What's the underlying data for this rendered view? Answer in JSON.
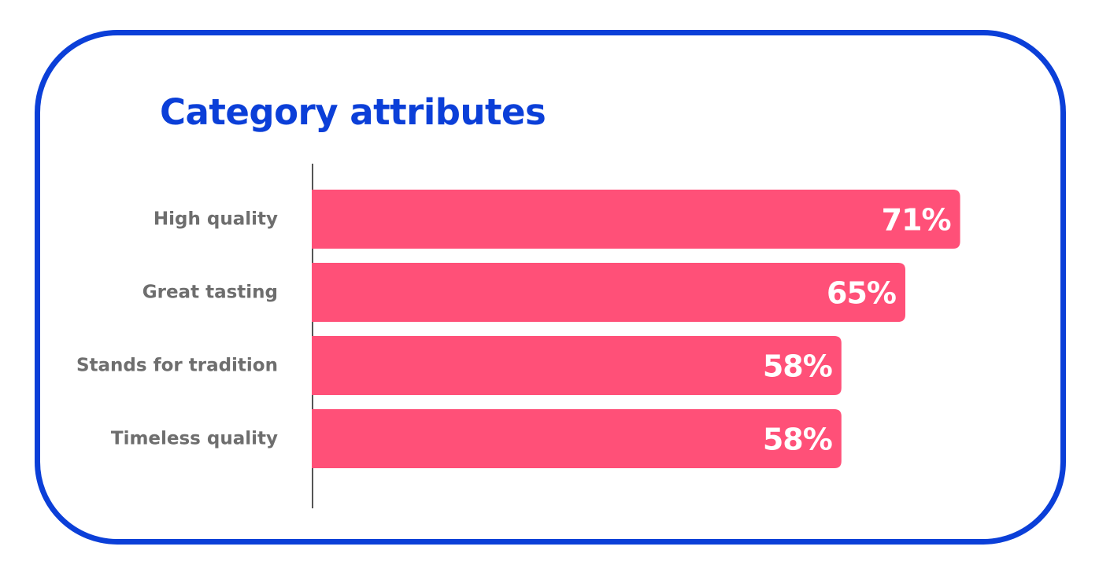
{
  "chart_data": {
    "type": "bar",
    "orientation": "horizontal",
    "title": "Category attributes",
    "categories": [
      "High quality",
      "Great tasting",
      "Stands for tradition",
      "Timeless quality"
    ],
    "values": [
      71,
      65,
      58,
      58
    ],
    "value_labels": [
      "71%",
      "65%",
      "58%",
      "58%"
    ],
    "unit": "%",
    "xlim": [
      0,
      100
    ],
    "grid": false,
    "legend": "none",
    "colors": {
      "bar": "#ff5078",
      "title": "#0b3fd8",
      "border": "#0b3fd8",
      "category_text": "#6e6e6e",
      "value_text": "#ffffff",
      "axis": "#555555"
    }
  }
}
